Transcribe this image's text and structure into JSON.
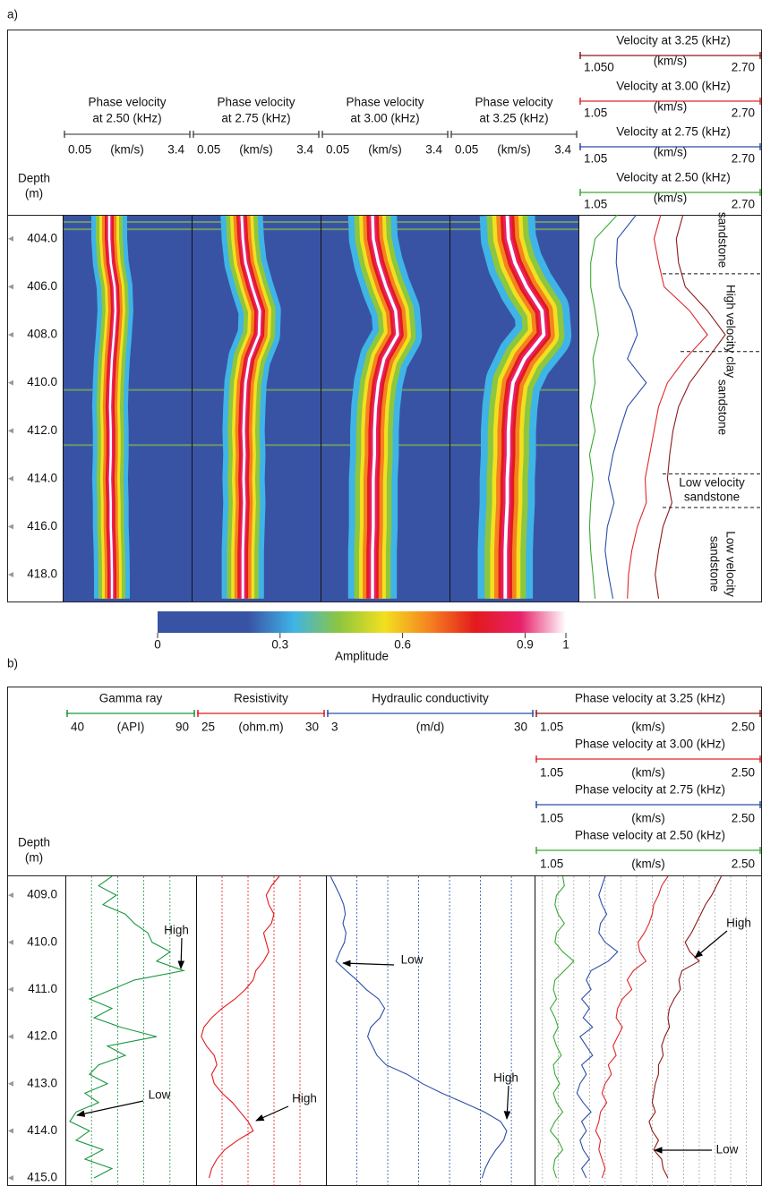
{
  "panel_a": {
    "label": "a)",
    "depth_axis": {
      "title": [
        "Depth",
        "(m)"
      ],
      "ylim": [
        403,
        419.12
      ],
      "yticks": [
        {
          "value": 404,
          "label": "404.0"
        },
        {
          "value": 406,
          "label": "406.0"
        },
        {
          "value": 408,
          "label": "408.0"
        },
        {
          "value": 410,
          "label": "410.0"
        },
        {
          "value": 412,
          "label": "412.0"
        },
        {
          "value": 414,
          "label": "414.0"
        },
        {
          "value": 416,
          "label": "416.0"
        },
        {
          "value": 418,
          "label": "418.0"
        }
      ]
    },
    "depths": [
      403,
      404,
      405,
      406,
      407,
      408,
      409,
      410,
      411,
      412,
      413,
      414,
      415,
      416,
      417,
      418,
      419
    ],
    "spectra": [
      {
        "title": [
          "Phase velocity",
          "at 2.50 (kHz)"
        ],
        "unit": "(km/s)",
        "xlim": [
          0.05,
          3.4
        ],
        "xticks": [
          0.05,
          3.4
        ],
        "peak_velocity": [
          1.26,
          1.26,
          1.3,
          1.4,
          1.42,
          1.38,
          1.33,
          1.3,
          1.28,
          1.3,
          1.3,
          1.28,
          1.3,
          1.3,
          1.32,
          1.33,
          1.33
        ]
      },
      {
        "title": [
          "Phase velocity",
          "at 2.75 (kHz)"
        ],
        "unit": "(km/s)",
        "xlim": [
          0.05,
          3.4
        ],
        "xticks": [
          0.05,
          3.4
        ],
        "peak_velocity": [
          1.35,
          1.38,
          1.45,
          1.62,
          1.82,
          1.8,
          1.55,
          1.45,
          1.42,
          1.4,
          1.42,
          1.4,
          1.42,
          1.4,
          1.38,
          1.38,
          1.38
        ]
      },
      {
        "title": [
          "Phase velocity",
          "at 3.00 (kHz)"
        ],
        "unit": "(km/s)",
        "xlim": [
          0.05,
          3.4
        ],
        "xticks": [
          0.05,
          3.4
        ],
        "peak_velocity": [
          1.4,
          1.42,
          1.55,
          1.75,
          2.0,
          2.05,
          1.7,
          1.55,
          1.48,
          1.45,
          1.45,
          1.42,
          1.42,
          1.42,
          1.4,
          1.4,
          1.4
        ]
      },
      {
        "title": [
          "Phase velocity",
          "at 3.25 (kHz)"
        ],
        "unit": "(km/s)",
        "xlim": [
          0.05,
          3.4
        ],
        "xticks": [
          0.05,
          3.4
        ],
        "peak_velocity": [
          1.55,
          1.58,
          1.75,
          2.05,
          2.45,
          2.5,
          2.0,
          1.7,
          1.62,
          1.58,
          1.58,
          1.55,
          1.55,
          1.52,
          1.5,
          1.5,
          1.5
        ]
      }
    ],
    "velocity_track": {
      "xlim": [
        1.05,
        2.7
      ],
      "series": [
        {
          "name": "Velocity at 3.25 (kHz)",
          "unit": "(km/s)",
          "color": "#8b1a1a",
          "xticks": [
            {
              "value": 1.05,
              "label": "1.050"
            },
            {
              "value": 2.7,
              "label": "2.70"
            }
          ],
          "values": [
            1.99,
            1.93,
            1.95,
            2.01,
            2.21,
            2.37,
            2.21,
            2.05,
            1.95,
            1.9,
            1.87,
            1.85,
            1.89,
            1.81,
            1.77,
            1.74,
            1.77
          ]
        },
        {
          "name": "Velocity at 3.00 (kHz)",
          "unit": "(km/s)",
          "color": "#e0262a",
          "xticks": [
            1.05,
            {
              "value": 2.7,
              "label": "2.70"
            }
          ],
          "values": [
            1.79,
            1.73,
            1.77,
            1.82,
            2.05,
            2.21,
            2.01,
            1.85,
            1.77,
            1.73,
            1.69,
            1.65,
            1.66,
            1.58,
            1.53,
            1.5,
            1.49
          ]
        },
        {
          "name": "Velocity at 2.75 (kHz)",
          "unit": "(km/s)",
          "color": "#2b4ea8",
          "xticks": [
            1.05,
            {
              "value": 2.7,
              "label": "2.70"
            }
          ],
          "values": [
            1.57,
            1.4,
            1.39,
            1.42,
            1.53,
            1.58,
            1.49,
            1.66,
            1.49,
            1.42,
            1.36,
            1.32,
            1.37,
            1.31,
            1.29,
            1.32,
            1.36
          ]
        },
        {
          "name": "Velocity at 2.50 (kHz)",
          "unit": "(km/s)",
          "color": "#3aa935",
          "xticks": [
            1.05,
            {
              "value": 2.7,
              "label": "2.70"
            }
          ],
          "values": [
            1.4,
            1.2,
            1.16,
            1.16,
            1.2,
            1.23,
            1.18,
            1.2,
            1.16,
            1.2,
            1.15,
            1.18,
            1.16,
            1.15,
            1.16,
            1.18,
            1.2
          ]
        }
      ]
    },
    "lithology": {
      "labels": [
        "sandstone",
        "High velocity clay",
        "sandstone",
        [
          "Low velocity",
          "sandstone"
        ],
        [
          "Low velocity",
          "sandstone"
        ]
      ],
      "boundaries": [
        405.46,
        408.7,
        413.8,
        415.2
      ]
    },
    "colorbar": {
      "title": "Amplitude",
      "xlim": [
        0,
        1
      ],
      "xticks": [
        0,
        0.3,
        0.6,
        0.9,
        1
      ],
      "colors": [
        "#3953a4",
        "#3953a4",
        "#3953a4",
        "#3fb4e6",
        "#8dc63f",
        "#f2e01f",
        "#f58220",
        "#e31a1c",
        "#e8206a",
        "#ffffff"
      ]
    }
  },
  "panel_b": {
    "label": "b)",
    "depth_axis": {
      "title": [
        "Depth",
        "(m)"
      ],
      "ylim": [
        408.58,
        415.17
      ],
      "yticks": [
        {
          "value": 409,
          "label": "409.0"
        },
        {
          "value": 410,
          "label": "410.0"
        },
        {
          "value": 411,
          "label": "411.0"
        },
        {
          "value": 412,
          "label": "412.0"
        },
        {
          "value": 413,
          "label": "413.0"
        },
        {
          "value": 414,
          "label": "414.0"
        },
        {
          "value": 415,
          "label": "415.0"
        }
      ]
    },
    "depths": [
      408.6,
      408.8,
      409,
      409.2,
      409.4,
      409.6,
      409.8,
      410,
      410.2,
      410.4,
      410.6,
      410.8,
      411,
      411.2,
      411.4,
      411.6,
      411.8,
      412,
      412.2,
      412.4,
      412.6,
      412.8,
      413,
      413.2,
      413.4,
      413.6,
      413.8,
      414,
      414.2,
      414.4,
      414.6,
      414.8,
      415
    ],
    "tracks": [
      {
        "title": "Gamma ray",
        "unit": "(API)",
        "xlim": [
          40,
          90
        ],
        "xticks": [
          40,
          90
        ],
        "grid": [
          50,
          60,
          70,
          80
        ],
        "color": "#1a9641",
        "annotations": [
          "High",
          "Low"
        ],
        "values": [
          57.8,
          52.7,
          59.5,
          54.4,
          62.9,
          66.4,
          71.5,
          73.2,
          80.1,
          74.9,
          85.2,
          66.4,
          57.8,
          49.2,
          57.8,
          51.0,
          61.2,
          74.9,
          56.1,
          62.9,
          52.7,
          49.2,
          56.1,
          47.5,
          52.7,
          44.1,
          41.7,
          49.2,
          44.1,
          54.4,
          47.5,
          57.8,
          51.0
        ]
      },
      {
        "title": "Resistivity",
        "unit": "(ohm.m)",
        "xlim": [
          25,
          30
        ],
        "xticks": [
          25,
          30
        ],
        "grid": [
          26,
          27,
          28,
          29
        ],
        "color": "#e31a1c",
        "annotations": [
          "High"
        ],
        "values": [
          28.2,
          27.9,
          27.7,
          27.8,
          28.0,
          27.9,
          27.6,
          27.7,
          27.8,
          27.6,
          27.3,
          27.2,
          26.9,
          26.5,
          26.0,
          25.6,
          25.3,
          25.2,
          25.4,
          25.7,
          25.8,
          25.6,
          25.7,
          26.0,
          26.4,
          26.7,
          27.0,
          27.2,
          26.6,
          26.1,
          25.8,
          25.6,
          25.5
        ]
      },
      {
        "title": "Hydraulic conductivity",
        "unit": "(m/d)",
        "xlim": [
          3,
          30
        ],
        "xticks": [
          3,
          30
        ],
        "grid": [
          7,
          11,
          15,
          19,
          23,
          27
        ],
        "color": "#2b4ea8",
        "annotations": [
          "Low",
          "High"
        ],
        "values": [
          3.6,
          4.2,
          4.8,
          5.3,
          5.5,
          5.2,
          5.6,
          5.4,
          4.8,
          4.3,
          5.6,
          7.0,
          8.2,
          9.8,
          10.6,
          10.0,
          8.8,
          8.4,
          9.0,
          9.6,
          10.8,
          13.5,
          15.5,
          18.0,
          20.8,
          23.5,
          25.6,
          26.4,
          26.0,
          25.0,
          24.2,
          23.6,
          23.2
        ]
      }
    ],
    "velocity_track": {
      "xlim": [
        1.05,
        2.5
      ],
      "grid": [
        1.1,
        1.2,
        1.3,
        1.4,
        1.5,
        1.6,
        1.7,
        1.8,
        1.9,
        2.0,
        2.1,
        2.2,
        2.3,
        2.4
      ],
      "annotations": [
        "High",
        "Low"
      ],
      "series": [
        {
          "name": "Phase velocity at 3.25 (kHz)",
          "unit": "(km/s)",
          "color": "#8b1a1a",
          "xticks": [
            1.05,
            {
              "value": 2.5,
              "label": "2.50"
            }
          ],
          "values": [
            2.24,
            2.21,
            2.18,
            2.14,
            2.11,
            2.08,
            2.05,
            2.01,
            2.04,
            2.1,
            1.99,
            1.97,
            1.98,
            1.94,
            1.91,
            1.9,
            1.91,
            1.88,
            1.86,
            1.87,
            1.84,
            1.84,
            1.82,
            1.81,
            1.8,
            1.82,
            1.78,
            1.8,
            1.84,
            1.81,
            1.86,
            1.87,
            1.9
          ]
        },
        {
          "name": "Phase velocity at 3.00 (kHz)",
          "unit": "(km/s)",
          "color": "#e0262a",
          "xticks": [
            1.05,
            {
              "value": 2.5,
              "label": "2.50"
            }
          ],
          "values": [
            1.9,
            1.86,
            1.84,
            1.81,
            1.8,
            1.78,
            1.75,
            1.71,
            1.72,
            1.76,
            1.68,
            1.64,
            1.67,
            1.61,
            1.58,
            1.57,
            1.61,
            1.58,
            1.55,
            1.57,
            1.52,
            1.54,
            1.5,
            1.48,
            1.51,
            1.47,
            1.46,
            1.44,
            1.47,
            1.46,
            1.48,
            1.5,
            1.48
          ]
        },
        {
          "name": "Phase velocity at 2.75 (kHz)",
          "unit": "(km/s)",
          "color": "#2b4ea8",
          "xticks": [
            1.05,
            {
              "value": 2.5,
              "label": "2.50"
            }
          ],
          "values": [
            1.5,
            1.48,
            1.46,
            1.48,
            1.51,
            1.47,
            1.46,
            1.5,
            1.58,
            1.52,
            1.41,
            1.38,
            1.41,
            1.35,
            1.4,
            1.36,
            1.42,
            1.34,
            1.38,
            1.42,
            1.35,
            1.38,
            1.34,
            1.32,
            1.36,
            1.41,
            1.35,
            1.38,
            1.34,
            1.36,
            1.4,
            1.35,
            1.38
          ]
        },
        {
          "name": "Phase velocity at 2.50 (kHz)",
          "unit": "(km/s)",
          "color": "#3aa935",
          "xticks": [
            1.05,
            {
              "value": 2.5,
              "label": "2.50"
            }
          ],
          "values": [
            1.23,
            1.24,
            1.19,
            1.18,
            1.2,
            1.24,
            1.19,
            1.18,
            1.23,
            1.3,
            1.24,
            1.18,
            1.17,
            1.19,
            1.15,
            1.18,
            1.2,
            1.17,
            1.19,
            1.22,
            1.17,
            1.18,
            1.21,
            1.17,
            1.19,
            1.23,
            1.18,
            1.15,
            1.2,
            1.23,
            1.18,
            1.17,
            1.19
          ]
        }
      ]
    }
  }
}
